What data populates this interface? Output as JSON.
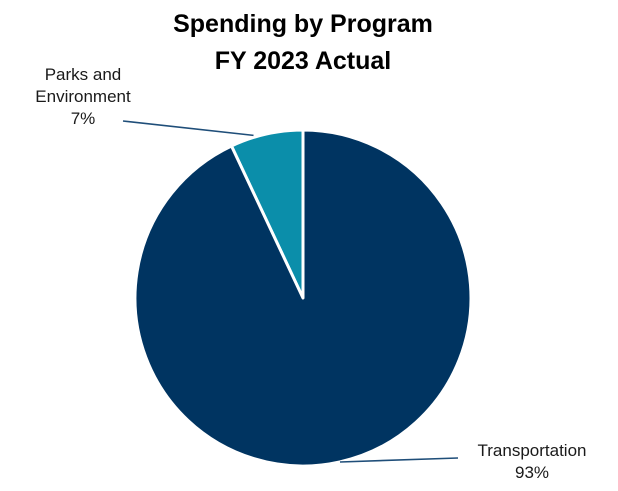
{
  "chart_data": {
    "type": "pie",
    "title": [
      "Spending by Program",
      "FY 2023 Actual"
    ],
    "slices": [
      {
        "label": "Parks and Environment",
        "label_lines": [
          "Parks and",
          "Environment"
        ],
        "percent_label": "7%",
        "value": 7,
        "color": "#0b8eaa"
      },
      {
        "label": "Transportation",
        "label_lines": [
          "Transportation"
        ],
        "percent_label": "93%",
        "value": 93,
        "color": "#003461"
      }
    ],
    "legend": "none",
    "leader_line_color": "#1f4e79",
    "slice_border_color": "#ffffff"
  }
}
